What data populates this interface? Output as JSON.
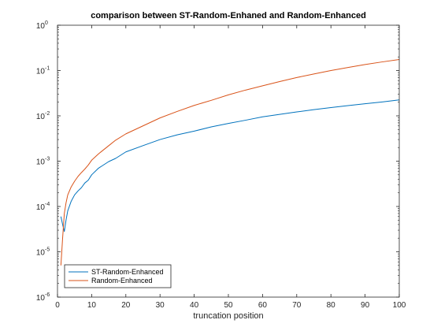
{
  "chart_data": {
    "type": "line",
    "title": "comparison between ST-Random-Enhaned and Random-Enhanced",
    "xlabel": "truncation position",
    "ylabel": "",
    "xlim": [
      0,
      100
    ],
    "ylim": [
      1e-06,
      1
    ],
    "yscale": "log",
    "x_ticks": [
      0,
      10,
      20,
      30,
      40,
      50,
      60,
      70,
      80,
      90,
      100
    ],
    "y_tick_exponents": [
      -6,
      -5,
      -4,
      -3,
      -2,
      -1,
      0
    ],
    "y_tick_base": "10",
    "grid": false,
    "legend_position": "bottom-left",
    "series": [
      {
        "name": "ST-Random-Enhanced",
        "color": "#0072BD",
        "x": [
          1,
          1.5,
          2,
          2.5,
          3,
          4,
          5,
          6,
          7,
          8,
          9,
          10,
          12,
          15,
          17,
          20,
          25,
          30,
          35,
          40,
          45,
          50,
          55,
          60,
          65,
          70,
          75,
          80,
          85,
          90,
          95,
          100
        ],
        "y": [
          6e-05,
          4e-05,
          2.8e-05,
          5e-05,
          8e-05,
          0.00013,
          0.00018,
          0.00022,
          0.00026,
          0.00033,
          0.00038,
          0.0005,
          0.0007,
          0.00098,
          0.00115,
          0.0016,
          0.0022,
          0.003,
          0.0038,
          0.0046,
          0.0057,
          0.0068,
          0.008,
          0.0095,
          0.0108,
          0.0122,
          0.0137,
          0.0152,
          0.0168,
          0.0185,
          0.0203,
          0.0225
        ]
      },
      {
        "name": "Random-Enhanced",
        "color": "#D95319",
        "x": [
          1,
          1.5,
          2,
          2.5,
          3,
          4,
          5,
          6,
          7,
          8,
          9,
          10,
          12,
          15,
          17,
          20,
          25,
          30,
          35,
          40,
          45,
          50,
          55,
          60,
          65,
          70,
          75,
          80,
          85,
          90,
          95,
          100
        ],
        "y": [
          5e-06,
          2e-05,
          7e-05,
          0.00012,
          0.00018,
          0.00027,
          0.00036,
          0.00046,
          0.00056,
          0.00067,
          0.00082,
          0.00105,
          0.00145,
          0.0022,
          0.0029,
          0.004,
          0.006,
          0.009,
          0.0125,
          0.017,
          0.022,
          0.029,
          0.037,
          0.046,
          0.057,
          0.07,
          0.084,
          0.1,
          0.117,
          0.136,
          0.155,
          0.175
        ]
      }
    ]
  }
}
